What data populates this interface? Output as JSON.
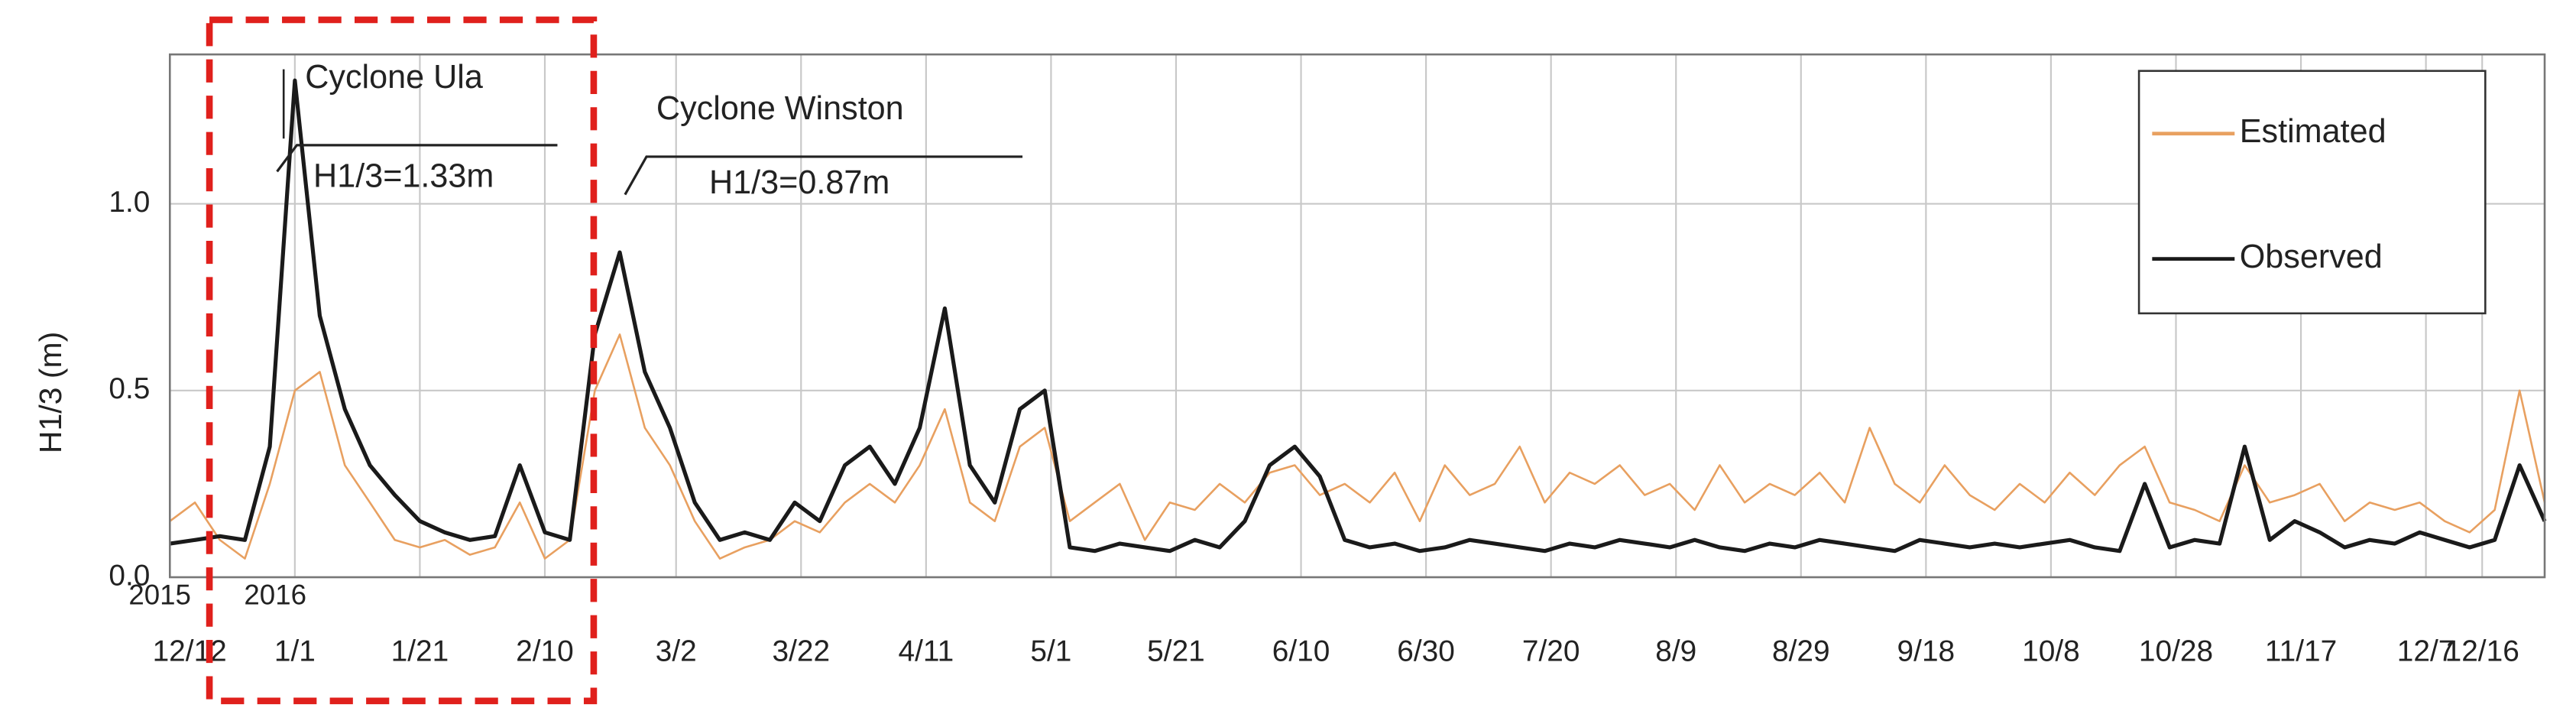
{
  "chart_data": {
    "type": "line",
    "y_label": "H1/3 (m)",
    "ylim": [
      0,
      1.4
    ],
    "yticks": [
      {
        "value": 0,
        "label": "0.0"
      },
      {
        "value": 0.5,
        "label": "0.5"
      },
      {
        "value": 1,
        "label": "1.0"
      }
    ],
    "xlim": [
      "2015-12-12",
      "2016-12-26"
    ],
    "xticks": [
      {
        "value": "2015-12-12",
        "label": "12/12"
      },
      {
        "value": "2016-01-01",
        "label": "1/1"
      },
      {
        "value": "2016-01-21",
        "label": "1/21"
      },
      {
        "value": "2016-02-10",
        "label": "2/10"
      },
      {
        "value": "2016-03-02",
        "label": "3/2"
      },
      {
        "value": "2016-03-22",
        "label": "3/22"
      },
      {
        "value": "2016-04-11",
        "label": "4/11"
      },
      {
        "value": "2016-05-01",
        "label": "5/1"
      },
      {
        "value": "2016-05-21",
        "label": "5/21"
      },
      {
        "value": "2016-06-10",
        "label": "6/10"
      },
      {
        "value": "2016-06-30",
        "label": "6/30"
      },
      {
        "value": "2016-07-20",
        "label": "7/20"
      },
      {
        "value": "2016-08-09",
        "label": "8/9"
      },
      {
        "value": "2016-08-29",
        "label": "8/29"
      },
      {
        "value": "2016-09-18",
        "label": "9/18"
      },
      {
        "value": "2016-10-08",
        "label": "10/8"
      },
      {
        "value": "2016-10-28",
        "label": "10/28"
      },
      {
        "value": "2016-11-17",
        "label": "11/17"
      },
      {
        "value": "2016-12-07",
        "label": "12/7"
      },
      {
        "value": "2016-12-16",
        "label": "12/16"
      }
    ],
    "grid": true,
    "legend": "upper right",
    "annotations": [
      "2015",
      "2016",
      "Cyclone Ula",
      "H1/3=1.33m",
      "Cyclone Winston",
      "H1/3=0.87m"
    ],
    "x": [
      "2015-12-12",
      "2015-12-16",
      "2015-12-20",
      "2015-12-24",
      "2015-12-28",
      "2016-01-01",
      "2016-01-05",
      "2016-01-09",
      "2016-01-13",
      "2016-01-17",
      "2016-01-21",
      "2016-01-25",
      "2016-01-29",
      "2016-02-02",
      "2016-02-06",
      "2016-02-10",
      "2016-02-14",
      "2016-02-18",
      "2016-02-22",
      "2016-02-26",
      "2016-03-01",
      "2016-03-05",
      "2016-03-09",
      "2016-03-13",
      "2016-03-17",
      "2016-03-21",
      "2016-03-25",
      "2016-03-29",
      "2016-04-02",
      "2016-04-06",
      "2016-04-10",
      "2016-04-14",
      "2016-04-18",
      "2016-04-22",
      "2016-04-26",
      "2016-04-30",
      "2016-05-04",
      "2016-05-08",
      "2016-05-12",
      "2016-05-16",
      "2016-05-20",
      "2016-05-24",
      "2016-05-28",
      "2016-06-01",
      "2016-06-05",
      "2016-06-09",
      "2016-06-13",
      "2016-06-17",
      "2016-06-21",
      "2016-06-25",
      "2016-06-29",
      "2016-07-03",
      "2016-07-07",
      "2016-07-11",
      "2016-07-15",
      "2016-07-19",
      "2016-07-23",
      "2016-07-27",
      "2016-07-31",
      "2016-08-04",
      "2016-08-08",
      "2016-08-12",
      "2016-08-16",
      "2016-08-20",
      "2016-08-24",
      "2016-08-28",
      "2016-09-01",
      "2016-09-05",
      "2016-09-09",
      "2016-09-13",
      "2016-09-17",
      "2016-09-21",
      "2016-09-25",
      "2016-09-29",
      "2016-10-03",
      "2016-10-07",
      "2016-10-11",
      "2016-10-15",
      "2016-10-19",
      "2016-10-23",
      "2016-10-27",
      "2016-10-31",
      "2016-11-04",
      "2016-11-08",
      "2016-11-12",
      "2016-11-16",
      "2016-11-20",
      "2016-11-24",
      "2016-11-28",
      "2016-12-02",
      "2016-12-06",
      "2016-12-10",
      "2016-12-14",
      "2016-12-18",
      "2016-12-22",
      "2016-12-26"
    ],
    "series": [
      {
        "name": "Estimated",
        "color": "#e8a060",
        "values": [
          0.15,
          0.2,
          0.1,
          0.05,
          0.25,
          0.5,
          0.55,
          0.3,
          0.2,
          0.1,
          0.08,
          0.1,
          0.06,
          0.08,
          0.2,
          0.05,
          0.1,
          0.5,
          0.65,
          0.4,
          0.3,
          0.15,
          0.05,
          0.08,
          0.1,
          0.15,
          0.12,
          0.2,
          0.25,
          0.2,
          0.3,
          0.45,
          0.2,
          0.15,
          0.35,
          0.4,
          0.15,
          0.2,
          0.25,
          0.1,
          0.2,
          0.18,
          0.25,
          0.2,
          0.28,
          0.3,
          0.22,
          0.25,
          0.2,
          0.28,
          0.15,
          0.3,
          0.22,
          0.25,
          0.35,
          0.2,
          0.28,
          0.25,
          0.3,
          0.22,
          0.25,
          0.18,
          0.3,
          0.2,
          0.25,
          0.22,
          0.28,
          0.2,
          0.4,
          0.25,
          0.2,
          0.3,
          0.22,
          0.18,
          0.25,
          0.2,
          0.28,
          0.22,
          0.3,
          0.35,
          0.2,
          0.18,
          0.15,
          0.3,
          0.2,
          0.22,
          0.25,
          0.15,
          0.2,
          0.18,
          0.2,
          0.15,
          0.12,
          0.18,
          0.5,
          0.2
        ]
      },
      {
        "name": "Observed",
        "color": "#1a1a1a",
        "values": [
          0.09,
          0.1,
          0.11,
          0.1,
          0.35,
          1.33,
          0.7,
          0.45,
          0.3,
          0.22,
          0.15,
          0.12,
          0.1,
          0.11,
          0.3,
          0.12,
          0.1,
          0.65,
          0.87,
          0.55,
          0.4,
          0.2,
          0.1,
          0.12,
          0.1,
          0.2,
          0.15,
          0.3,
          0.35,
          0.25,
          0.4,
          0.72,
          0.3,
          0.2,
          0.45,
          0.5,
          0.08,
          0.07,
          0.09,
          0.08,
          0.07,
          0.1,
          0.08,
          0.15,
          0.3,
          0.35,
          0.27,
          0.1,
          0.08,
          0.09,
          0.07,
          0.08,
          0.1,
          0.09,
          0.08,
          0.07,
          0.09,
          0.08,
          0.1,
          0.09,
          0.08,
          0.1,
          0.08,
          0.07,
          0.09,
          0.08,
          0.1,
          0.09,
          0.08,
          0.07,
          0.1,
          0.09,
          0.08,
          0.09,
          0.08,
          0.09,
          0.1,
          0.08,
          0.07,
          0.25,
          0.08,
          0.1,
          0.09,
          0.35,
          0.1,
          0.15,
          0.12,
          0.08,
          0.1,
          0.09,
          0.12,
          0.1,
          0.08,
          0.1,
          0.3,
          0.15
        ]
      }
    ]
  }
}
